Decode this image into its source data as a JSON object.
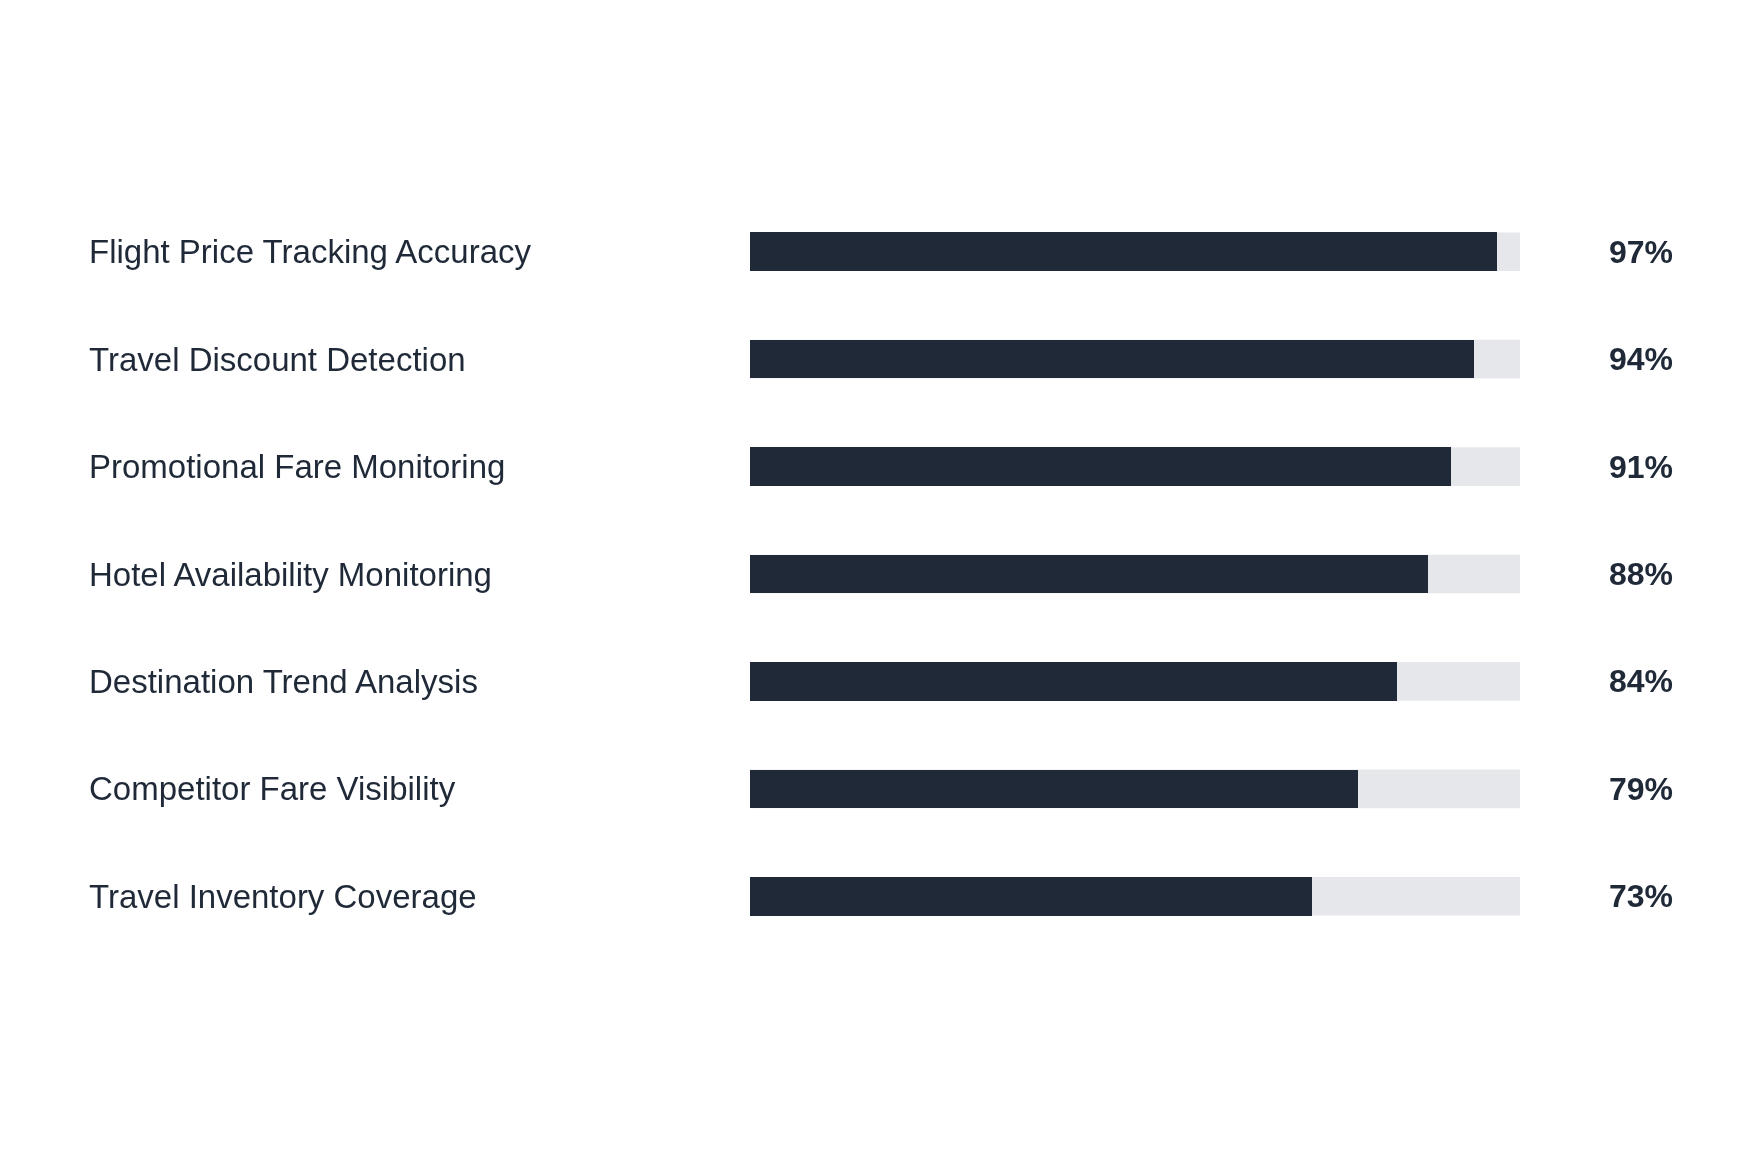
{
  "chart_data": {
    "type": "bar",
    "orientation": "horizontal",
    "categories": [
      "Flight Price Tracking Accuracy",
      "Travel Discount Detection",
      "Promotional Fare Monitoring",
      "Hotel Availability Monitoring",
      "Destination Trend Analysis",
      "Competitor Fare Visibility",
      "Travel Inventory Coverage"
    ],
    "values": [
      97,
      94,
      91,
      88,
      84,
      79,
      73
    ],
    "value_labels": [
      "97%",
      "94%",
      "91%",
      "88%",
      "84%",
      "79%",
      "73%"
    ],
    "color": "#1f2937",
    "xlim": [
      0,
      100
    ],
    "tick_labels": false,
    "grid": false,
    "legend": false
  }
}
